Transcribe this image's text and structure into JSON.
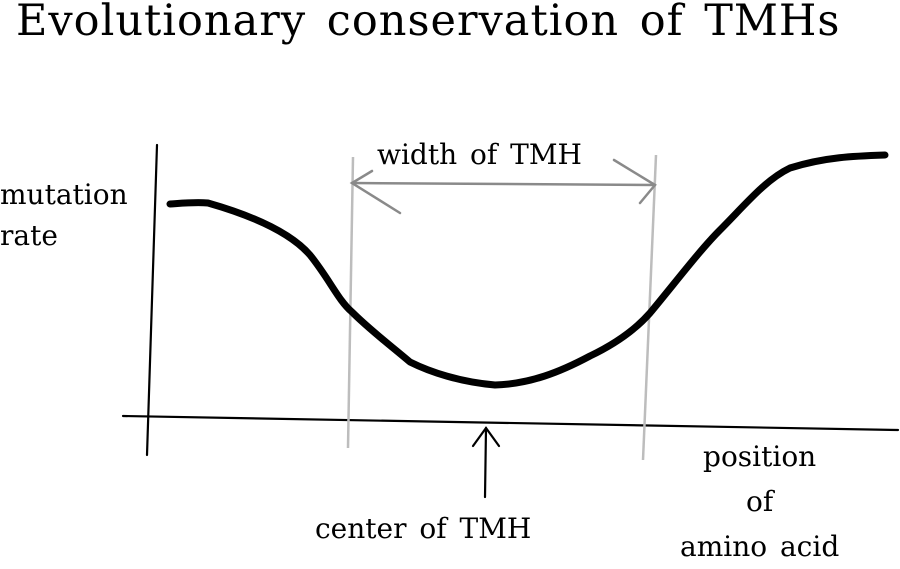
{
  "title": "Evolutionary conservation of TMHs",
  "labels": {
    "y_axis": [
      "mutation",
      "rate"
    ],
    "width": "width of TMH",
    "center": "center of TMH",
    "x_axis": [
      "position",
      "of",
      "amino acid"
    ]
  },
  "colors": {
    "curve": "#000000",
    "axes": "#000000",
    "boundary_lines": "#bdbdbd",
    "width_arrow": "#8a8a8a",
    "text": "#000000"
  }
}
